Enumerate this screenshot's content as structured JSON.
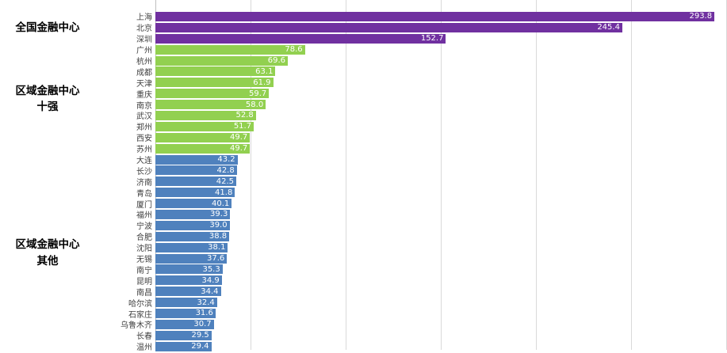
{
  "chart_data": {
    "type": "bar",
    "orientation": "horizontal",
    "title": "",
    "xlabel": "",
    "ylabel": "",
    "xlim": [
      0,
      300
    ],
    "gridline_interval": 50,
    "grid": true,
    "colors": {
      "national": "#7030a0",
      "regional_top10": "#92d050",
      "regional_other": "#4f81bd",
      "gridline": "#d9d9d9",
      "axis": "#bfbfbf",
      "value_text": "#ffffff"
    },
    "groups": [
      {
        "label": "全国金融中心",
        "label_lines": [
          "全国金融中心"
        ],
        "color": "#7030a0",
        "items": [
          {
            "city": "上海",
            "value": 293.8
          },
          {
            "city": "北京",
            "value": 245.4
          },
          {
            "city": "深圳",
            "value": 152.7
          }
        ]
      },
      {
        "label": "区域金融中心十强",
        "label_lines": [
          "区域金融中心",
          "十强"
        ],
        "color": "#92d050",
        "items": [
          {
            "city": "广州",
            "value": 78.6
          },
          {
            "city": "杭州",
            "value": 69.6
          },
          {
            "city": "成都",
            "value": 63.1
          },
          {
            "city": "天津",
            "value": 61.9
          },
          {
            "city": "重庆",
            "value": 59.7
          },
          {
            "city": "南京",
            "value": 58.0
          },
          {
            "city": "武汉",
            "value": 52.8
          },
          {
            "city": "郑州",
            "value": 51.7
          },
          {
            "city": "西安",
            "value": 49.7
          },
          {
            "city": "苏州",
            "value": 49.7
          }
        ]
      },
      {
        "label": "区域金融中心其他",
        "label_lines": [
          "区域金融中心",
          "其他"
        ],
        "color": "#4f81bd",
        "items": [
          {
            "city": "大连",
            "value": 43.2
          },
          {
            "city": "长沙",
            "value": 42.8
          },
          {
            "city": "济南",
            "value": 42.5
          },
          {
            "city": "青岛",
            "value": 41.8
          },
          {
            "city": "厦门",
            "value": 40.1
          },
          {
            "city": "福州",
            "value": 39.3
          },
          {
            "city": "宁波",
            "value": 39.0
          },
          {
            "city": "合肥",
            "value": 38.8
          },
          {
            "city": "沈阳",
            "value": 38.1
          },
          {
            "city": "无锡",
            "value": 37.6
          },
          {
            "city": "南宁",
            "value": 35.3
          },
          {
            "city": "昆明",
            "value": 34.9
          },
          {
            "city": "南昌",
            "value": 34.4
          },
          {
            "city": "哈尔滨",
            "value": 32.4
          },
          {
            "city": "石家庄",
            "value": 31.6
          },
          {
            "city": "乌鲁木齐",
            "value": 30.7
          },
          {
            "city": "长春",
            "value": 29.5
          },
          {
            "city": "温州",
            "value": 29.4
          }
        ]
      }
    ]
  }
}
